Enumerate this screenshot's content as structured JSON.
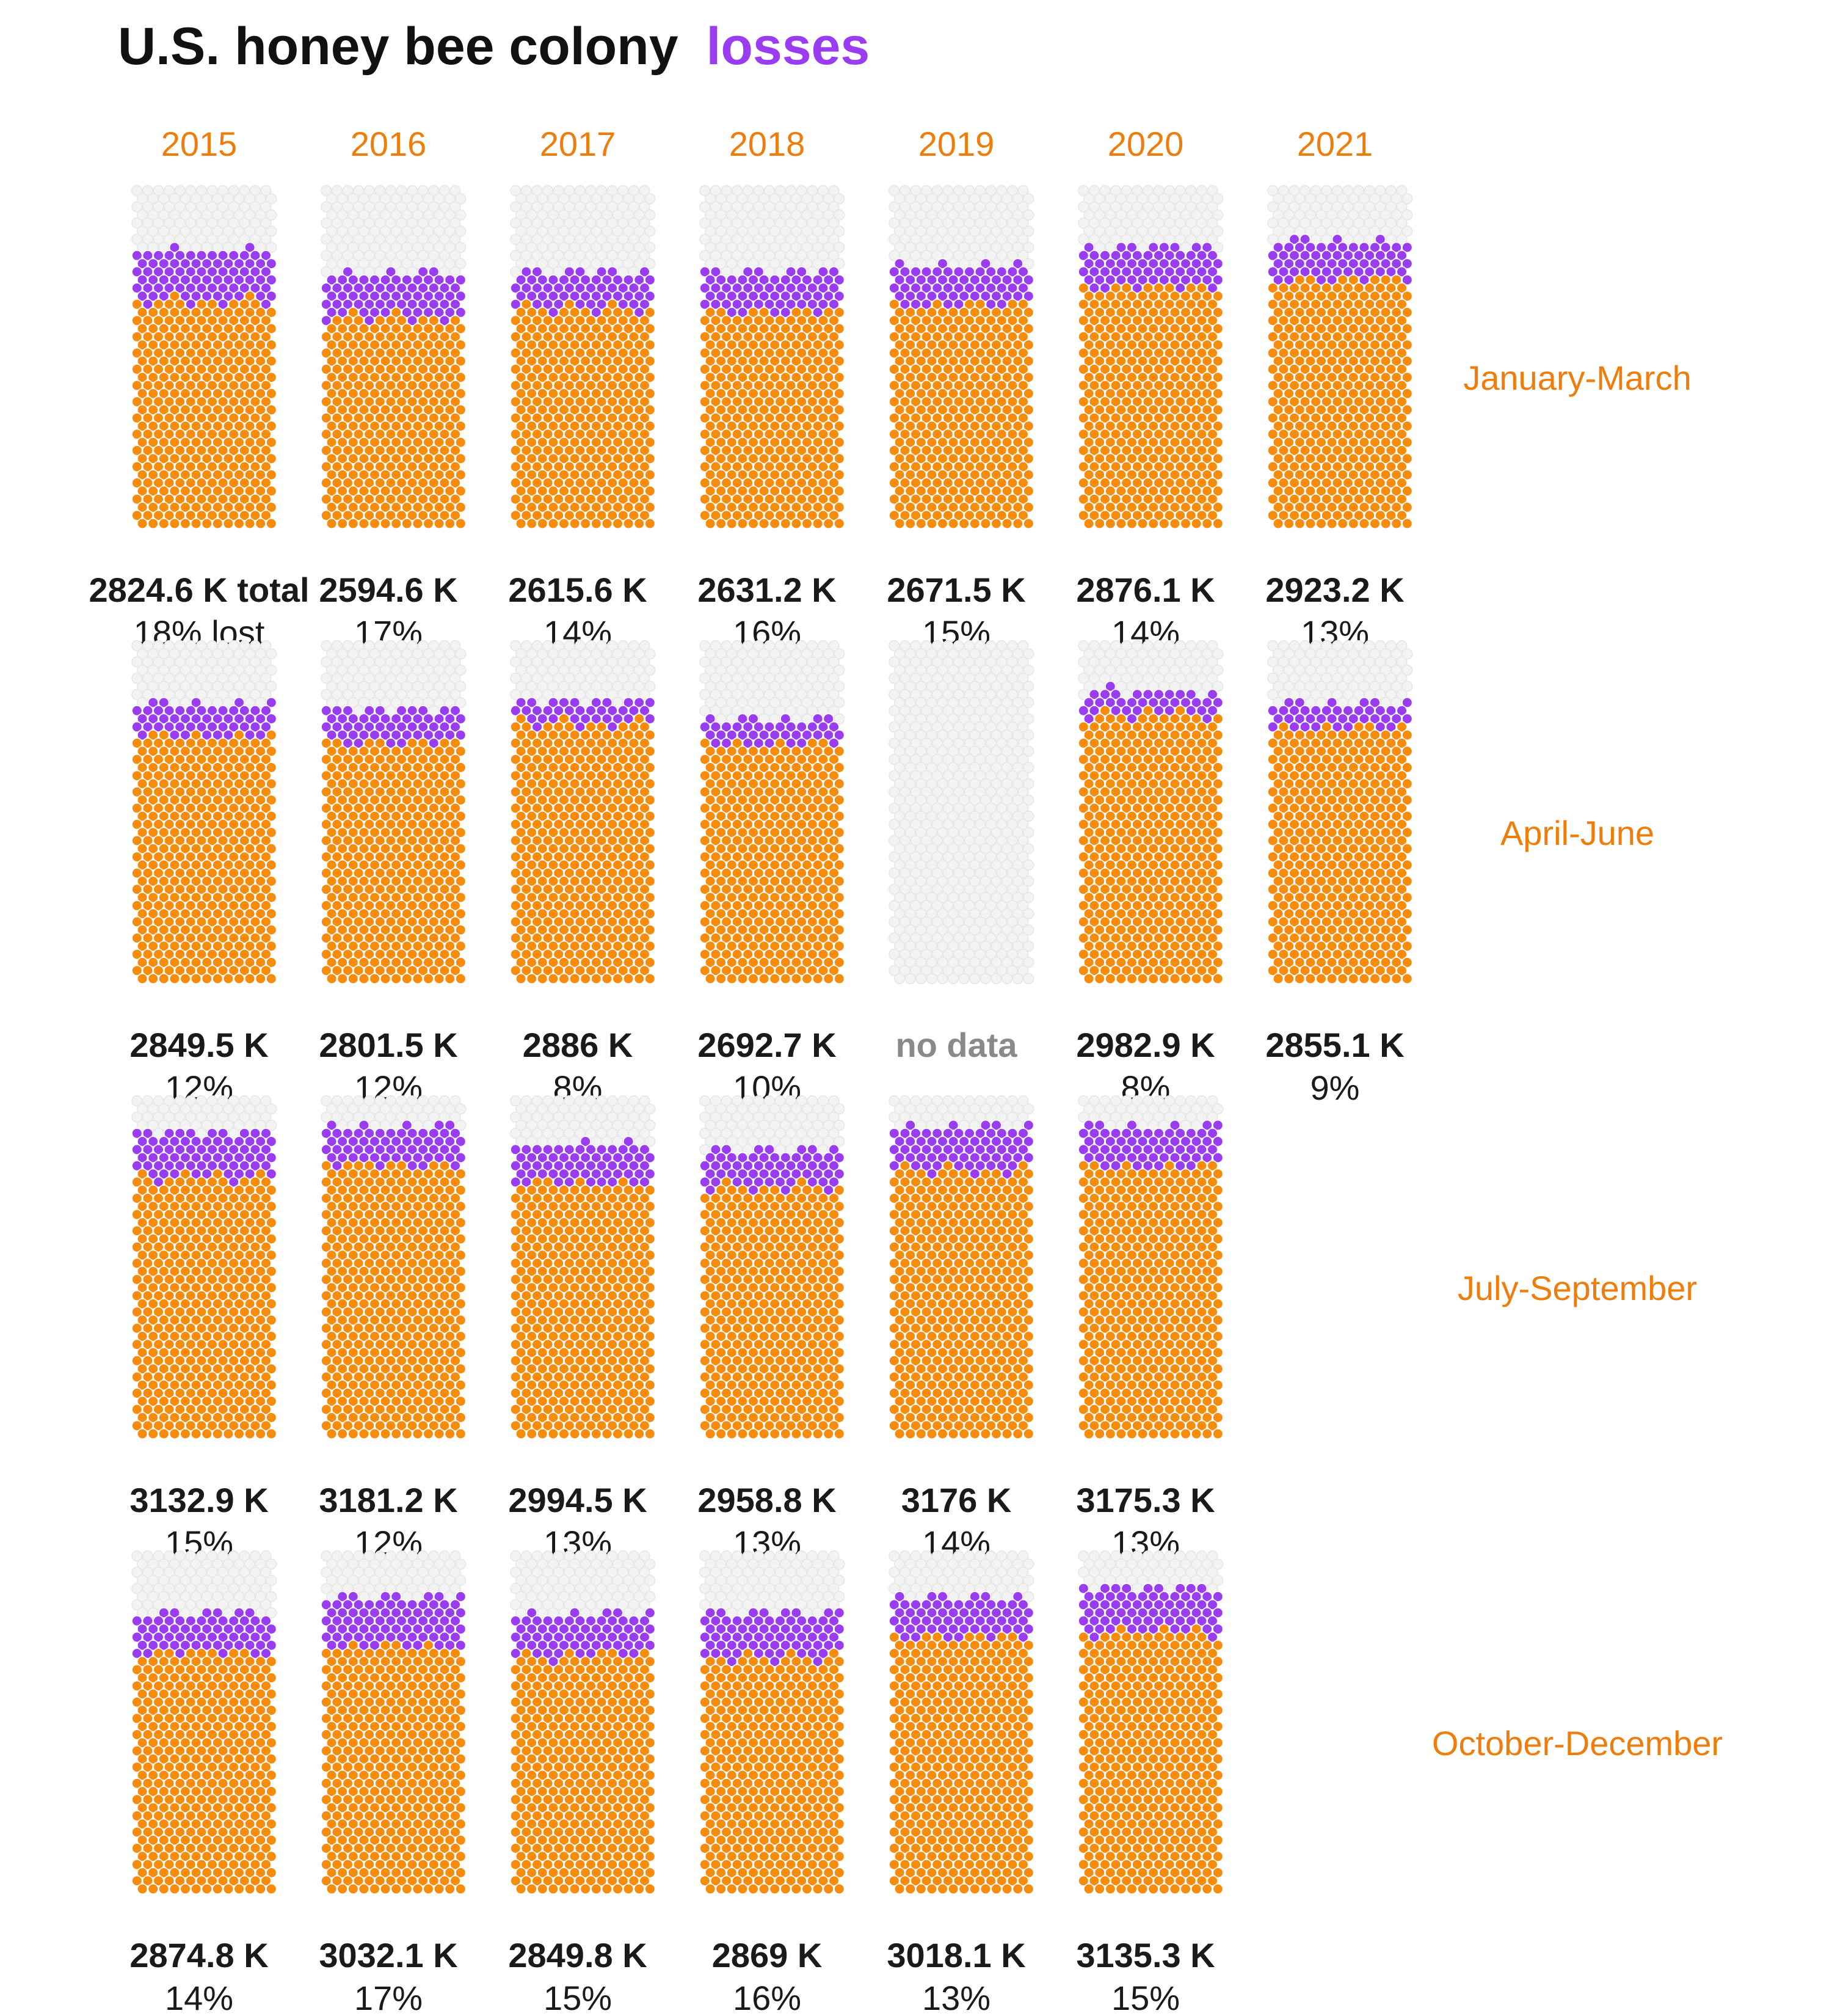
{
  "title_main": "U.S. honey bee colony",
  "title_accent": "losses",
  "colors": {
    "remaining": "#f68b0c",
    "lost": "#9a3cf0",
    "empty": "#f3f3f3",
    "text": "#1a1a1a",
    "label": "#ef7d0b"
  },
  "chart_data": {
    "type": "waffle",
    "years": [
      "2015",
      "2016",
      "2017",
      "2018",
      "2019",
      "2020",
      "2021"
    ],
    "quarters": [
      "January-March",
      "April-June",
      "July-September",
      "October-December"
    ],
    "cells": [
      [
        {
          "total": "2824.6 K total",
          "pct": "18% lost",
          "total_k": 2824.6,
          "loss_pct": 18
        },
        {
          "total": "2594.6 K",
          "pct": "17%",
          "total_k": 2594.6,
          "loss_pct": 17
        },
        {
          "total": "2615.6 K",
          "pct": "14%",
          "total_k": 2615.6,
          "loss_pct": 14
        },
        {
          "total": "2631.2 K",
          "pct": "16%",
          "total_k": 2631.2,
          "loss_pct": 16
        },
        {
          "total": "2671.5 K",
          "pct": "15%",
          "total_k": 2671.5,
          "loss_pct": 15
        },
        {
          "total": "2876.1 K",
          "pct": "14%",
          "total_k": 2876.1,
          "loss_pct": 14
        },
        {
          "total": "2923.2 K",
          "pct": "13%",
          "total_k": 2923.2,
          "loss_pct": 13
        }
      ],
      [
        {
          "total": "2849.5 K",
          "pct": "12%",
          "total_k": 2849.5,
          "loss_pct": 12
        },
        {
          "total": "2801.5 K",
          "pct": "12%",
          "total_k": 2801.5,
          "loss_pct": 12
        },
        {
          "total": "2886 K",
          "pct": "8%",
          "total_k": 2886,
          "loss_pct": 8
        },
        {
          "total": "2692.7 K",
          "pct": "10%",
          "total_k": 2692.7,
          "loss_pct": 10
        },
        {
          "nodata": "no data"
        },
        {
          "total": "2982.9 K",
          "pct": "8%",
          "total_k": 2982.9,
          "loss_pct": 8
        },
        {
          "total": "2855.1 K",
          "pct": "9%",
          "total_k": 2855.1,
          "loss_pct": 9
        }
      ],
      [
        {
          "total": "3132.9 K",
          "pct": "15%",
          "total_k": 3132.9,
          "loss_pct": 15
        },
        {
          "total": "3181.2 K",
          "pct": "12%",
          "total_k": 3181.2,
          "loss_pct": 12
        },
        {
          "total": "2994.5 K",
          "pct": "13%",
          "total_k": 2994.5,
          "loss_pct": 13
        },
        {
          "total": "2958.8 K",
          "pct": "13%",
          "total_k": 2958.8,
          "loss_pct": 13
        },
        {
          "total": "3176 K",
          "pct": "14%",
          "total_k": 3176,
          "loss_pct": 14
        },
        {
          "total": "3175.3 K",
          "pct": "13%",
          "total_k": 3175.3,
          "loss_pct": 13
        },
        null
      ],
      [
        {
          "total": "2874.8 K",
          "pct": "14%",
          "total_k": 2874.8,
          "loss_pct": 14
        },
        {
          "total": "3032.1 K",
          "pct": "17%",
          "total_k": 3032.1,
          "loss_pct": 17
        },
        {
          "total": "2849.8 K",
          "pct": "15%",
          "total_k": 2849.8,
          "loss_pct": 15
        },
        {
          "total": "2869 K",
          "pct": "16%",
          "total_k": 2869,
          "loss_pct": 16
        },
        {
          "total": "3018.1 K",
          "pct": "13%",
          "total_k": 3018.1,
          "loss_pct": 13
        },
        {
          "total": "3135.3 K",
          "pct": "15%",
          "total_k": 3135.3,
          "loss_pct": 15
        },
        null
      ]
    ]
  }
}
